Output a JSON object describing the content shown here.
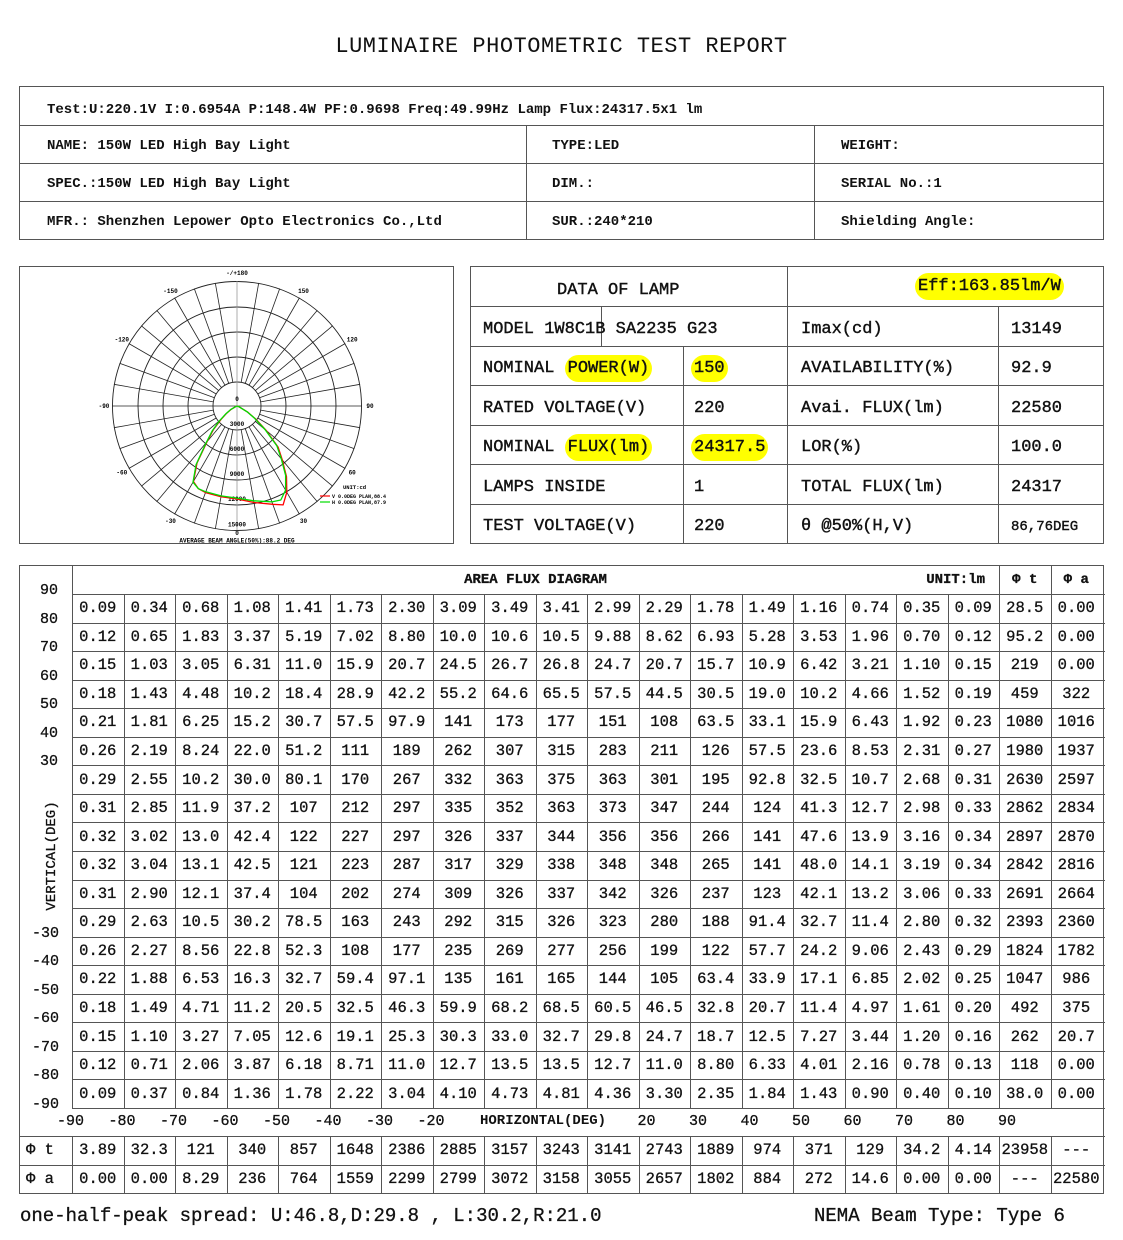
{
  "title": "LUMINAIRE PHOTOMETRIC TEST REPORT",
  "header": {
    "test_line": "Test:U:220.1V I:0.6954A P:148.4W PF:0.9698 Freq:49.99Hz  Lamp Flux:24317.5x1 lm",
    "name": "NAME: 150W LED High Bay Light",
    "type": "TYPE:LED",
    "weight": "WEIGHT:",
    "spec": "SPEC.:150W LED High Bay Light",
    "dim": "DIM.:",
    "serial": "SERIAL No.:1",
    "mfr": "MFR.: Shenzhen Lepower Opto Electronics Co.,Ltd",
    "sur": "SUR.:240*210",
    "shielding": "Shielding Angle:"
  },
  "chart_data": {
    "type": "polar",
    "angle_labels": [
      "-/+180",
      "150",
      "120",
      "90",
      "60",
      "30",
      "0",
      "-30",
      "-60",
      "-90",
      "-120",
      "-150"
    ],
    "radial_labels": [
      "0",
      "3000",
      "6000",
      "9000",
      "12000",
      "15000"
    ],
    "rmax": 15000,
    "unit_label": "UNIT:cd",
    "footer": "AVERAGE BEAM ANGLE(50%):88.2 DEG",
    "angles": [
      -90,
      -70,
      -60,
      -55,
      -50,
      -45,
      -40,
      -35,
      -30,
      -25,
      -20,
      -10,
      0,
      10,
      20,
      25,
      30,
      35,
      40,
      45,
      50,
      55,
      60,
      70,
      90
    ],
    "series": [
      {
        "name": "V 0.0DEG PLAN,88.4",
        "color": "#ff0000",
        "values": [
          0,
          100,
          800,
          1500,
          2500,
          4000,
          5600,
          8400,
          10500,
          11000,
          11100,
          11100,
          11200,
          11800,
          12600,
          13149,
          12000,
          10400,
          8500,
          7000,
          4600,
          2800,
          1500,
          300,
          0
        ]
      },
      {
        "name": "H 0.0DEG PLAN,87.9",
        "color": "#00dd00",
        "values": [
          0,
          100,
          900,
          1600,
          2700,
          4200,
          5800,
          8600,
          10600,
          11000,
          11000,
          11000,
          11100,
          11600,
          12300,
          12500,
          11700,
          10200,
          8300,
          6800,
          4400,
          2600,
          1400,
          300,
          0
        ]
      }
    ]
  },
  "lamp": {
    "title": "DATA OF LAMP",
    "eff": "Eff:163.85lm/W",
    "model": "MODEL 1W8C1B SA2235 G23",
    "imax_label": "Imax(cd)",
    "imax": "13149",
    "power_prefix": "NOMINAL",
    "power_label": "POWER(W)",
    "power": "150",
    "avail_label": "AVAILABILITY(%)",
    "avail": "92.9",
    "rated_label": "RATED VOLTAGE(V)",
    "rated": "220",
    "avai_flux_label": "Avai. FLUX(lm)",
    "avai_flux": "22580",
    "flux_prefix": "NOMINAL",
    "flux_label": "FLUX(lm)",
    "flux": "24317.5",
    "lor_label": "LOR(%)",
    "lor": "100.0",
    "lamps_label": "LAMPS INSIDE",
    "lamps": "1",
    "total_label": "TOTAL FLUX(lm)",
    "total": "24317",
    "testv_label": "TEST VOLTAGE(V)",
    "testv": "220",
    "beam_label": "θ @50%(H,V)",
    "beam": "86,76DEG",
    "highlight_color": "#ffff00"
  },
  "flux": {
    "title": "AREA FLUX DIAGRAM",
    "unit": "UNIT:lm",
    "col_phi_t": "Φ t",
    "col_phi_a": "Φ a",
    "v_axis_label": "VERTICAL(DEG)",
    "h_axis_label": "HORIZONTAL(DEG)",
    "v_ticks_top": [
      "90",
      "80",
      "70",
      "60",
      "50",
      "40",
      "30"
    ],
    "v_ticks_bottom": [
      "-30",
      "-40",
      "-50",
      "-60",
      "-70",
      "-80",
      "-90"
    ],
    "h_ticks_left": [
      "-90",
      "-80",
      "-70",
      "-60",
      "-50",
      "-40",
      "-30",
      "-20"
    ],
    "h_ticks_right": [
      "20",
      "30",
      "40",
      "50",
      "60",
      "70",
      "80",
      "90"
    ],
    "rows": [
      [
        "0.09",
        "0.34",
        "0.68",
        "1.08",
        "1.41",
        "1.73",
        "2.30",
        "3.09",
        "3.49",
        "3.41",
        "2.99",
        "2.29",
        "1.78",
        "1.49",
        "1.16",
        "0.74",
        "0.35",
        "0.09",
        "28.5",
        "0.00"
      ],
      [
        "0.12",
        "0.65",
        "1.83",
        "3.37",
        "5.19",
        "7.02",
        "8.80",
        "10.0",
        "10.6",
        "10.5",
        "9.88",
        "8.62",
        "6.93",
        "5.28",
        "3.53",
        "1.96",
        "0.70",
        "0.12",
        "95.2",
        "0.00"
      ],
      [
        "0.15",
        "1.03",
        "3.05",
        "6.31",
        "11.0",
        "15.9",
        "20.7",
        "24.5",
        "26.7",
        "26.8",
        "24.7",
        "20.7",
        "15.7",
        "10.9",
        "6.42",
        "3.21",
        "1.10",
        "0.15",
        "219",
        "0.00"
      ],
      [
        "0.18",
        "1.43",
        "4.48",
        "10.2",
        "18.4",
        "28.9",
        "42.2",
        "55.2",
        "64.6",
        "65.5",
        "57.5",
        "44.5",
        "30.5",
        "19.0",
        "10.2",
        "4.66",
        "1.52",
        "0.19",
        "459",
        "322"
      ],
      [
        "0.21",
        "1.81",
        "6.25",
        "15.2",
        "30.7",
        "57.5",
        "97.9",
        "141",
        "173",
        "177",
        "151",
        "108",
        "63.5",
        "33.1",
        "15.9",
        "6.43",
        "1.92",
        "0.23",
        "1080",
        "1016"
      ],
      [
        "0.26",
        "2.19",
        "8.24",
        "22.0",
        "51.2",
        "111",
        "189",
        "262",
        "307",
        "315",
        "283",
        "211",
        "126",
        "57.5",
        "23.6",
        "8.53",
        "2.31",
        "0.27",
        "1980",
        "1937"
      ],
      [
        "0.29",
        "2.55",
        "10.2",
        "30.0",
        "80.1",
        "170",
        "267",
        "332",
        "363",
        "375",
        "363",
        "301",
        "195",
        "92.8",
        "32.5",
        "10.7",
        "2.68",
        "0.31",
        "2630",
        "2597"
      ],
      [
        "0.31",
        "2.85",
        "11.9",
        "37.2",
        "107",
        "212",
        "297",
        "335",
        "352",
        "363",
        "373",
        "347",
        "244",
        "124",
        "41.3",
        "12.7",
        "2.98",
        "0.33",
        "2862",
        "2834"
      ],
      [
        "0.32",
        "3.02",
        "13.0",
        "42.4",
        "122",
        "227",
        "297",
        "326",
        "337",
        "344",
        "356",
        "356",
        "266",
        "141",
        "47.6",
        "13.9",
        "3.16",
        "0.34",
        "2897",
        "2870"
      ],
      [
        "0.32",
        "3.04",
        "13.1",
        "42.5",
        "121",
        "223",
        "287",
        "317",
        "329",
        "338",
        "348",
        "348",
        "265",
        "141",
        "48.0",
        "14.1",
        "3.19",
        "0.34",
        "2842",
        "2816"
      ],
      [
        "0.31",
        "2.90",
        "12.1",
        "37.4",
        "104",
        "202",
        "274",
        "309",
        "326",
        "337",
        "342",
        "326",
        "237",
        "123",
        "42.1",
        "13.2",
        "3.06",
        "0.33",
        "2691",
        "2664"
      ],
      [
        "0.29",
        "2.63",
        "10.5",
        "30.2",
        "78.5",
        "163",
        "243",
        "292",
        "315",
        "326",
        "323",
        "280",
        "188",
        "91.4",
        "32.7",
        "11.4",
        "2.80",
        "0.32",
        "2393",
        "2360"
      ],
      [
        "0.26",
        "2.27",
        "8.56",
        "22.8",
        "52.3",
        "108",
        "177",
        "235",
        "269",
        "277",
        "256",
        "199",
        "122",
        "57.7",
        "24.2",
        "9.06",
        "2.43",
        "0.29",
        "1824",
        "1782"
      ],
      [
        "0.22",
        "1.88",
        "6.53",
        "16.3",
        "32.7",
        "59.4",
        "97.1",
        "135",
        "161",
        "165",
        "144",
        "105",
        "63.4",
        "33.9",
        "17.1",
        "6.85",
        "2.02",
        "0.25",
        "1047",
        "986"
      ],
      [
        "0.18",
        "1.49",
        "4.71",
        "11.2",
        "20.5",
        "32.5",
        "46.3",
        "59.9",
        "68.2",
        "68.5",
        "60.5",
        "46.5",
        "32.8",
        "20.7",
        "11.4",
        "4.97",
        "1.61",
        "0.20",
        "492",
        "375"
      ],
      [
        "0.15",
        "1.10",
        "3.27",
        "7.05",
        "12.6",
        "19.1",
        "25.3",
        "30.3",
        "33.0",
        "32.7",
        "29.8",
        "24.7",
        "18.7",
        "12.5",
        "7.27",
        "3.44",
        "1.20",
        "0.16",
        "262",
        "20.7"
      ],
      [
        "0.12",
        "0.71",
        "2.06",
        "3.87",
        "6.18",
        "8.71",
        "11.0",
        "12.7",
        "13.5",
        "13.5",
        "12.7",
        "11.0",
        "8.80",
        "6.33",
        "4.01",
        "2.16",
        "0.78",
        "0.13",
        "118",
        "0.00"
      ],
      [
        "0.09",
        "0.37",
        "0.84",
        "1.36",
        "1.78",
        "2.22",
        "3.04",
        "4.10",
        "4.73",
        "4.81",
        "4.36",
        "3.30",
        "2.35",
        "1.84",
        "1.43",
        "0.90",
        "0.40",
        "0.10",
        "38.0",
        "0.00"
      ]
    ],
    "phi_t_label": "Φ t",
    "phi_t": [
      "3.89",
      "32.3",
      "121",
      "340",
      "857",
      "1648",
      "2386",
      "2885",
      "3157",
      "3243",
      "3141",
      "2743",
      "1889",
      "974",
      "371",
      "129",
      "34.2",
      "4.14",
      "23958",
      "---"
    ],
    "phi_a_label": "Φ a",
    "phi_a": [
      "0.00",
      "0.00",
      "8.29",
      "236",
      "764",
      "1559",
      "2299",
      "2799",
      "3072",
      "3158",
      "3055",
      "2657",
      "1802",
      "884",
      "272",
      "14.6",
      "0.00",
      "0.00",
      "---",
      "22580"
    ]
  },
  "footer": {
    "spread": "one-half-peak spread: U:46.8,D:29.8 , L:30.2,R:21.0",
    "nema": "NEMA Beam Type: Type 6"
  }
}
